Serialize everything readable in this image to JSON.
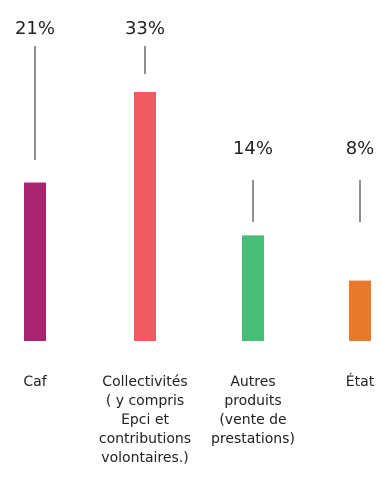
{
  "chart_data": {
    "type": "bar",
    "categories": [
      [
        "Caf"
      ],
      [
        "Collectivités",
        "( y compris",
        "Epci et",
        "contributions",
        "volontaires.)"
      ],
      [
        "Autres",
        "produits",
        "(vente de",
        "prestations)"
      ],
      [
        "État"
      ]
    ],
    "values": [
      21,
      33,
      14,
      8
    ],
    "data_labels": [
      "21%",
      "33%",
      "14%",
      "8%"
    ],
    "colors": [
      "#a8246f",
      "#ef5b63",
      "#47bd78",
      "#e8782b"
    ],
    "ylim": [
      0,
      35
    ],
    "grid": false,
    "legend": "none",
    "title": "",
    "xlabel": "",
    "ylabel": ""
  }
}
